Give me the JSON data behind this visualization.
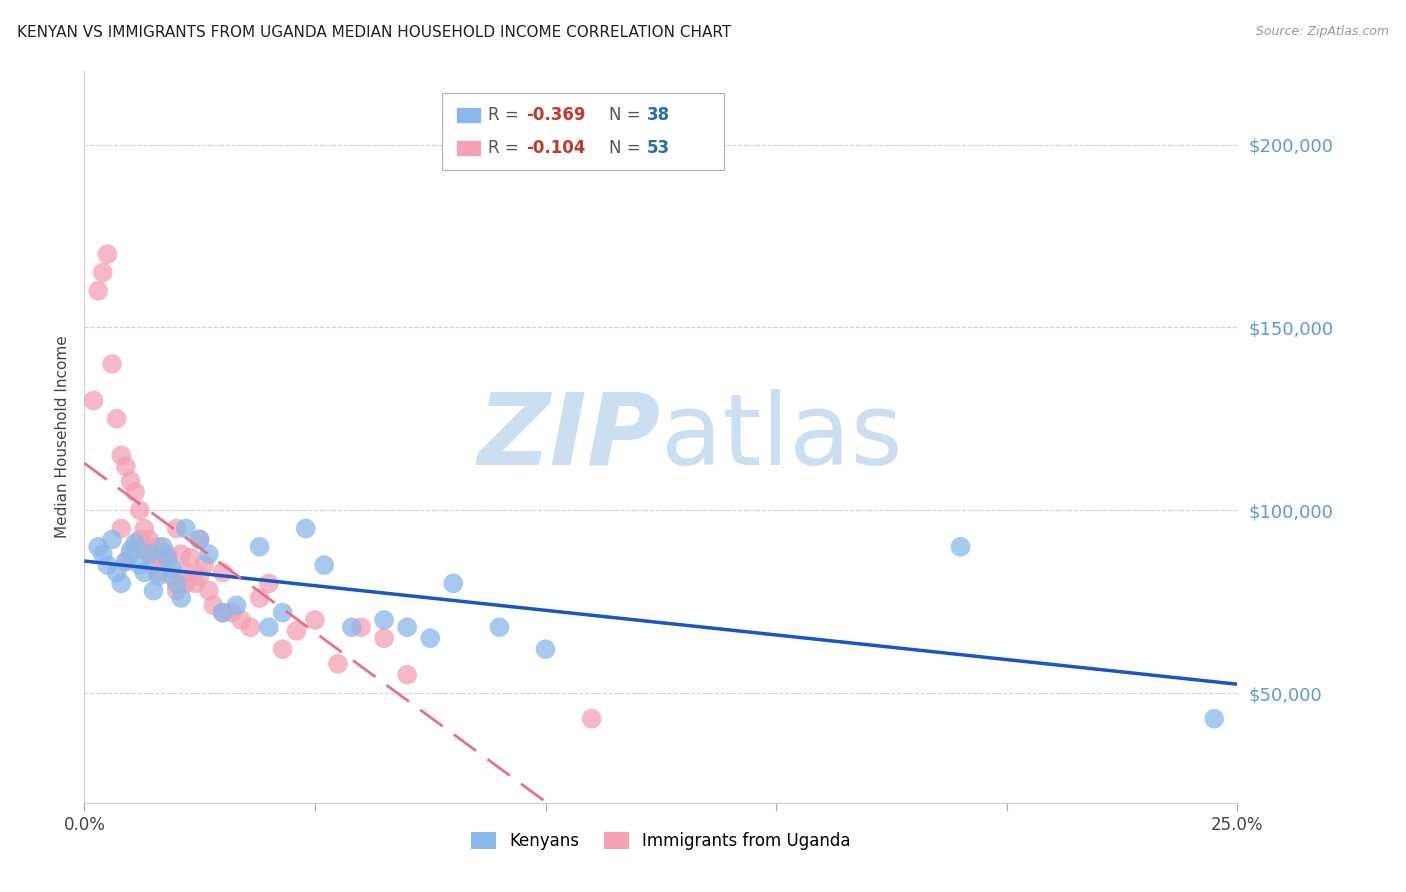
{
  "title": "KENYAN VS IMMIGRANTS FROM UGANDA MEDIAN HOUSEHOLD INCOME CORRELATION CHART",
  "source": "Source: ZipAtlas.com",
  "ylabel": "Median Household Income",
  "xlim": [
    0.0,
    0.25
  ],
  "ylim": [
    20000,
    220000
  ],
  "xticks": [
    0.0,
    0.05,
    0.1,
    0.15,
    0.2,
    0.25
  ],
  "xticklabels": [
    "0.0%",
    "",
    "",
    "",
    "",
    "25.0%"
  ],
  "yticks_right": [
    50000,
    100000,
    150000,
    200000
  ],
  "ytick_labels_right": [
    "$50,000",
    "$100,000",
    "$150,000",
    "$200,000"
  ],
  "ytick_color": "#5b9bd5",
  "background_color": "#ffffff",
  "grid_color": "#cccccc",
  "title_fontsize": 11,
  "kenyan_color": "#89b8e8",
  "uganda_color": "#f4a0b5",
  "line_blue": "#1a56c4",
  "line_pink": "#e8708a",
  "watermark_zip": "ZIP",
  "watermark_atlas": "atlas",
  "watermark_color": "#cce0f5",
  "kenyan_x": [
    0.003,
    0.004,
    0.005,
    0.006,
    0.007,
    0.008,
    0.009,
    0.01,
    0.011,
    0.012,
    0.013,
    0.014,
    0.015,
    0.016,
    0.017,
    0.018,
    0.019,
    0.02,
    0.021,
    0.022,
    0.025,
    0.027,
    0.03,
    0.033,
    0.038,
    0.04,
    0.043,
    0.048,
    0.052,
    0.058,
    0.065,
    0.07,
    0.075,
    0.08,
    0.09,
    0.1,
    0.19,
    0.245
  ],
  "kenyan_y": [
    90000,
    88000,
    85000,
    92000,
    83000,
    80000,
    86000,
    89000,
    91000,
    85000,
    83000,
    88000,
    78000,
    82000,
    90000,
    87000,
    84000,
    80000,
    76000,
    95000,
    92000,
    88000,
    72000,
    74000,
    90000,
    68000,
    72000,
    95000,
    85000,
    68000,
    70000,
    68000,
    65000,
    80000,
    68000,
    62000,
    90000,
    43000
  ],
  "uganda_x": [
    0.002,
    0.003,
    0.004,
    0.005,
    0.006,
    0.007,
    0.008,
    0.009,
    0.01,
    0.011,
    0.012,
    0.013,
    0.014,
    0.015,
    0.016,
    0.017,
    0.018,
    0.019,
    0.02,
    0.021,
    0.022,
    0.023,
    0.024,
    0.025,
    0.026,
    0.027,
    0.028,
    0.03,
    0.032,
    0.034,
    0.036,
    0.038,
    0.04,
    0.043,
    0.046,
    0.05,
    0.055,
    0.06,
    0.065,
    0.07,
    0.01,
    0.013,
    0.008,
    0.015,
    0.02,
    0.025,
    0.018,
    0.012,
    0.009,
    0.016,
    0.022,
    0.03,
    0.11
  ],
  "uganda_y": [
    130000,
    160000,
    165000,
    170000,
    140000,
    125000,
    115000,
    112000,
    108000,
    105000,
    100000,
    95000,
    92000,
    88000,
    90000,
    87000,
    85000,
    82000,
    95000,
    88000,
    83000,
    87000,
    80000,
    92000,
    85000,
    78000,
    74000,
    83000,
    72000,
    70000,
    68000,
    76000,
    80000,
    62000,
    67000,
    70000,
    58000,
    68000,
    65000,
    55000,
    88000,
    90000,
    95000,
    85000,
    78000,
    82000,
    88000,
    92000,
    86000,
    83000,
    80000,
    72000,
    43000
  ]
}
